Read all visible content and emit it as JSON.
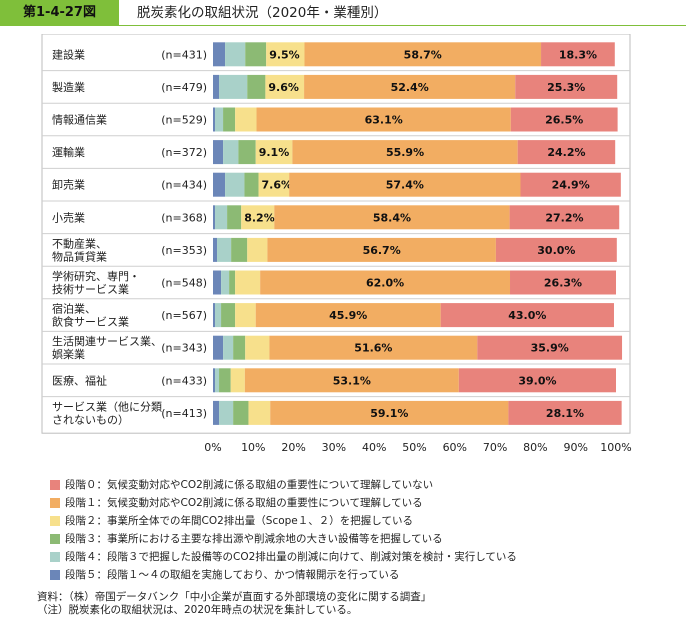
{
  "figure": {
    "number": "第1-4-27図",
    "title": "脱炭素化の取組状況（2020年・業種別）"
  },
  "colors": {
    "accent": "#7fbf3a",
    "stage0": "#e8837c",
    "stage1": "#f2ad62",
    "stage2": "#f7e08c",
    "stage3": "#8cba74",
    "stage4": "#a9d1c9",
    "stage5": "#6b86b8"
  },
  "chart_data": {
    "type": "bar",
    "orientation": "horizontal",
    "stacked": true,
    "normalized_percent": true,
    "categories": [
      "建設業",
      "製造業",
      "情報通信業",
      "運輸業",
      "卸売業",
      "小売業",
      "不動産業、物品賃貸業",
      "学術研究、専門・技術サービス業",
      "宿泊業、飲食サービス業",
      "生活関連サービス業、娯楽業",
      "医療、福祉",
      "サービス業（他に分類されないもの）"
    ],
    "category_lines": [
      [
        "建設業"
      ],
      [
        "製造業"
      ],
      [
        "情報通信業"
      ],
      [
        "運輸業"
      ],
      [
        "卸売業"
      ],
      [
        "小売業"
      ],
      [
        "不動産業、",
        "物品賃貸業"
      ],
      [
        "学術研究、専門・",
        "技術サービス業"
      ],
      [
        "宿泊業、",
        "飲食サービス業"
      ],
      [
        "生活関連サービス業、",
        "娯楽業"
      ],
      [
        "医療、福祉"
      ],
      [
        "サービス業（他に分類",
        "されないもの）"
      ]
    ],
    "sample_sizes": [
      "(n=431)",
      "(n=479)",
      "(n=529)",
      "(n=372)",
      "(n=434)",
      "(n=368)",
      "(n=353)",
      "(n=548)",
      "(n=567)",
      "(n=343)",
      "(n=433)",
      "(n=413)"
    ],
    "series": [
      {
        "name": "段階５：段階１～４の取組を実施しており、かつ情報開示を行っている",
        "color_key": "stage5",
        "values": [
          3.0,
          1.5,
          0.5,
          2.5,
          3.0,
          0.5,
          1.0,
          2.0,
          0.5,
          2.5,
          0.5,
          1.5
        ],
        "labels": []
      },
      {
        "name": "段階４：段階３で把握した設備等のCO2排出量の削減に向けて、削減対策を検討・実行している",
        "color_key": "stage4",
        "values": [
          5.0,
          7.0,
          2.0,
          3.8,
          4.8,
          3.0,
          3.5,
          2.0,
          1.5,
          2.5,
          1.0,
          3.5
        ],
        "labels": []
      },
      {
        "name": "段階３：事業所における主要な排出源や削減余地の大きい設備等を把握している",
        "color_key": "stage3",
        "values": [
          5.2,
          4.5,
          3.0,
          4.3,
          3.5,
          3.5,
          4.0,
          1.5,
          3.5,
          3.0,
          2.9,
          3.8
        ],
        "labels": []
      },
      {
        "name": "段階２：事業所全体での年間CO2排出量（Scope１、２）を把握している",
        "color_key": "stage2",
        "values": [
          9.5,
          9.6,
          5.3,
          9.1,
          7.6,
          8.2,
          5.0,
          6.2,
          5.1,
          6.0,
          3.5,
          5.4
        ],
        "labels": [
          "9.5%",
          "9.6%",
          "",
          "9.1%",
          "7.6%",
          "8.2%",
          "",
          "",
          "",
          "",
          "",
          ""
        ]
      },
      {
        "name": "段階１：気候変動対応やCO2削減に係る取組の重要性について理解している",
        "color_key": "stage1",
        "values": [
          58.7,
          52.4,
          63.1,
          55.9,
          57.4,
          58.4,
          56.7,
          62.0,
          45.9,
          51.6,
          53.1,
          59.1
        ],
        "labels": [
          "58.7%",
          "52.4%",
          "63.1%",
          "55.9%",
          "57.4%",
          "58.4%",
          "56.7%",
          "62.0%",
          "45.9%",
          "51.6%",
          "53.1%",
          "59.1%"
        ]
      },
      {
        "name": "段階０：気候変動対応やCO2削減に係る取組の重要性について理解していない",
        "color_key": "stage0",
        "values": [
          18.3,
          25.3,
          26.5,
          24.2,
          24.9,
          27.2,
          30.0,
          26.3,
          43.0,
          35.9,
          39.0,
          28.1
        ],
        "labels": [
          "18.3%",
          "25.3%",
          "26.5%",
          "24.2%",
          "24.9%",
          "27.2%",
          "30.0%",
          "26.3%",
          "43.0%",
          "35.9%",
          "39.0%",
          "28.1%"
        ]
      }
    ],
    "x_ticks": [
      "0%",
      "10%",
      "20%",
      "30%",
      "40%",
      "50%",
      "60%",
      "70%",
      "80%",
      "90%",
      "100%"
    ],
    "xlim": [
      0,
      100
    ],
    "grid": false,
    "legend_position": "bottom"
  },
  "legend": [
    {
      "color_key": "stage0",
      "label": "段階０：気候変動対応やCO2削減に係る取組の重要性について理解していない"
    },
    {
      "color_key": "stage1",
      "label": "段階１：気候変動対応やCO2削減に係る取組の重要性について理解している"
    },
    {
      "color_key": "stage2",
      "label": "段階２：事業所全体での年間CO2排出量（Scope１、２）を把握している"
    },
    {
      "color_key": "stage3",
      "label": "段階３：事業所における主要な排出源や削減余地の大きい設備等を把握している"
    },
    {
      "color_key": "stage4",
      "label": "段階４：段階３で把握した設備等のCO2排出量の削減に向けて、削減対策を検討・実行している"
    },
    {
      "color_key": "stage5",
      "label": "段階５：段階１～４の取組を実施しており、かつ情報開示を行っている"
    }
  ],
  "notes": {
    "source": "資料：（株）帝国データバンク「中小企業が直面する外部環境の変化に関する調査」",
    "note": "（注）脱炭素化の取組状況は、2020年時点の状況を集計している。"
  }
}
